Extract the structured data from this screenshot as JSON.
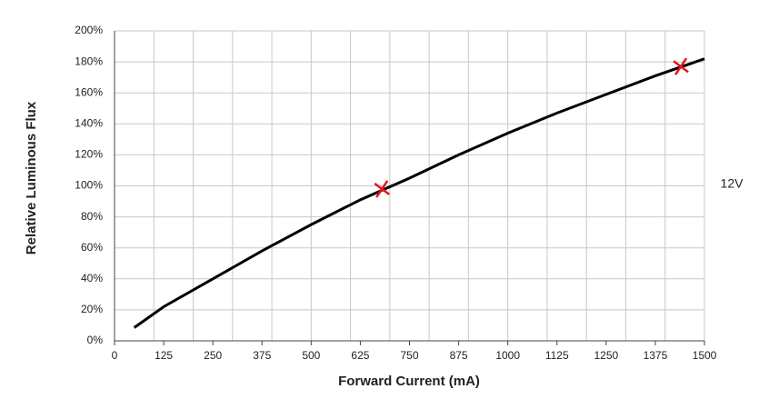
{
  "chart_data": {
    "type": "line",
    "x_label": "Forward Current (mA)",
    "y_label": "Relative Luminous Flux",
    "annotation": "12V",
    "xlim": [
      0,
      1500
    ],
    "xticks": [
      0,
      125,
      250,
      375,
      500,
      625,
      750,
      875,
      1000,
      1125,
      1250,
      1375,
      1500
    ],
    "x_grid_lines": [
      100,
      200,
      300,
      400,
      500,
      600,
      700,
      800,
      900,
      1000,
      1100,
      1200,
      1300,
      1400,
      1500
    ],
    "ylim": [
      0,
      200
    ],
    "yticks": [
      {
        "value": 0,
        "label": "0%"
      },
      {
        "value": 20,
        "label": "20%"
      },
      {
        "value": 40,
        "label": "40%"
      },
      {
        "value": 60,
        "label": "60%"
      },
      {
        "value": 80,
        "label": "80%"
      },
      {
        "value": 100,
        "label": "100%"
      },
      {
        "value": 120,
        "label": "120%"
      },
      {
        "value": 140,
        "label": "140%"
      },
      {
        "value": 160,
        "label": "160%"
      },
      {
        "value": 180,
        "label": "180%"
      },
      {
        "value": 200,
        "label": "200%"
      }
    ],
    "grid": true,
    "series": [
      {
        "color": "#000000",
        "x": [
          50,
          125,
          250,
          375,
          500,
          625,
          750,
          875,
          1000,
          1125,
          1250,
          1375,
          1500
        ],
        "values": [
          8.5,
          22,
          40,
          58,
          75,
          91,
          105,
          120,
          134,
          147,
          159,
          171,
          182
        ]
      }
    ],
    "markers": {
      "color": "#e8141b",
      "x": [
        680,
        1440
      ],
      "values": [
        98,
        177
      ]
    }
  }
}
